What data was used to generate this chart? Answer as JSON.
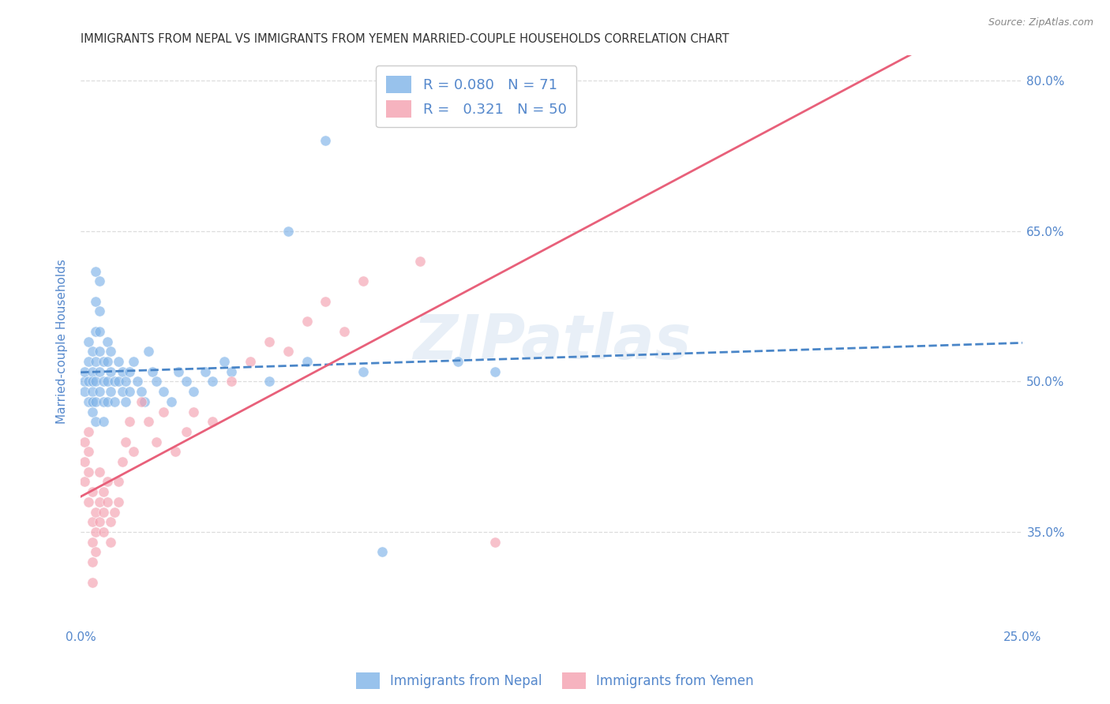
{
  "title": "IMMIGRANTS FROM NEPAL VS IMMIGRANTS FROM YEMEN MARRIED-COUPLE HOUSEHOLDS CORRELATION CHART",
  "source": "Source: ZipAtlas.com",
  "ylabel": "Married-couple Households",
  "xlabel": "",
  "xlim": [
    0.0,
    0.25
  ],
  "ylim": [
    0.255,
    0.825
  ],
  "ytick_vals": [
    0.35,
    0.5,
    0.65,
    0.8
  ],
  "ytick_labels": [
    "35.0%",
    "50.0%",
    "65.0%",
    "80.0%"
  ],
  "xtick_vals": [
    0.0,
    0.05,
    0.1,
    0.15,
    0.2,
    0.25
  ],
  "xtick_labels": [
    "0.0%",
    "",
    "",
    "",
    "",
    "25.0%"
  ],
  "nepal_color": "#7fb3e8",
  "yemen_color": "#f4a0b0",
  "nepal_line_color": "#4a86c8",
  "yemen_line_color": "#e8607a",
  "nepal_R": 0.08,
  "nepal_N": 71,
  "yemen_R": 0.321,
  "yemen_N": 50,
  "nepal_x": [
    0.001,
    0.001,
    0.001,
    0.002,
    0.002,
    0.002,
    0.002,
    0.003,
    0.003,
    0.003,
    0.003,
    0.003,
    0.003,
    0.004,
    0.004,
    0.004,
    0.004,
    0.004,
    0.004,
    0.004,
    0.005,
    0.005,
    0.005,
    0.005,
    0.005,
    0.005,
    0.006,
    0.006,
    0.006,
    0.006,
    0.007,
    0.007,
    0.007,
    0.007,
    0.008,
    0.008,
    0.008,
    0.009,
    0.009,
    0.01,
    0.01,
    0.011,
    0.011,
    0.012,
    0.012,
    0.013,
    0.013,
    0.014,
    0.015,
    0.016,
    0.017,
    0.018,
    0.019,
    0.02,
    0.022,
    0.024,
    0.026,
    0.028,
    0.03,
    0.033,
    0.035,
    0.038,
    0.04,
    0.05,
    0.055,
    0.06,
    0.065,
    0.075,
    0.08,
    0.1,
    0.11
  ],
  "nepal_y": [
    0.5,
    0.49,
    0.51,
    0.48,
    0.5,
    0.52,
    0.54,
    0.47,
    0.49,
    0.51,
    0.53,
    0.5,
    0.48,
    0.46,
    0.48,
    0.5,
    0.52,
    0.55,
    0.58,
    0.61,
    0.6,
    0.57,
    0.55,
    0.49,
    0.51,
    0.53,
    0.5,
    0.52,
    0.48,
    0.46,
    0.5,
    0.48,
    0.52,
    0.54,
    0.49,
    0.51,
    0.53,
    0.5,
    0.48,
    0.5,
    0.52,
    0.49,
    0.51,
    0.5,
    0.48,
    0.51,
    0.49,
    0.52,
    0.5,
    0.49,
    0.48,
    0.53,
    0.51,
    0.5,
    0.49,
    0.48,
    0.51,
    0.5,
    0.49,
    0.51,
    0.5,
    0.52,
    0.51,
    0.5,
    0.65,
    0.52,
    0.74,
    0.51,
    0.33,
    0.52,
    0.51
  ],
  "yemen_x": [
    0.001,
    0.001,
    0.001,
    0.002,
    0.002,
    0.002,
    0.002,
    0.003,
    0.003,
    0.003,
    0.003,
    0.003,
    0.004,
    0.004,
    0.004,
    0.005,
    0.005,
    0.005,
    0.006,
    0.006,
    0.006,
    0.007,
    0.007,
    0.008,
    0.008,
    0.009,
    0.01,
    0.01,
    0.011,
    0.012,
    0.013,
    0.014,
    0.016,
    0.018,
    0.02,
    0.022,
    0.025,
    0.028,
    0.03,
    0.035,
    0.04,
    0.045,
    0.05,
    0.055,
    0.06,
    0.065,
    0.07,
    0.075,
    0.09,
    0.11
  ],
  "yemen_y": [
    0.44,
    0.42,
    0.4,
    0.45,
    0.43,
    0.41,
    0.38,
    0.39,
    0.36,
    0.34,
    0.32,
    0.3,
    0.37,
    0.35,
    0.33,
    0.41,
    0.38,
    0.36,
    0.39,
    0.37,
    0.35,
    0.4,
    0.38,
    0.36,
    0.34,
    0.37,
    0.4,
    0.38,
    0.42,
    0.44,
    0.46,
    0.43,
    0.48,
    0.46,
    0.44,
    0.47,
    0.43,
    0.45,
    0.47,
    0.46,
    0.5,
    0.52,
    0.54,
    0.53,
    0.56,
    0.58,
    0.55,
    0.6,
    0.62,
    0.34
  ],
  "watermark": "ZIPatlas",
  "background_color": "#ffffff",
  "grid_color": "#dddddd",
  "title_color": "#333333",
  "axis_label_color": "#5588cc",
  "tick_color": "#5588cc"
}
